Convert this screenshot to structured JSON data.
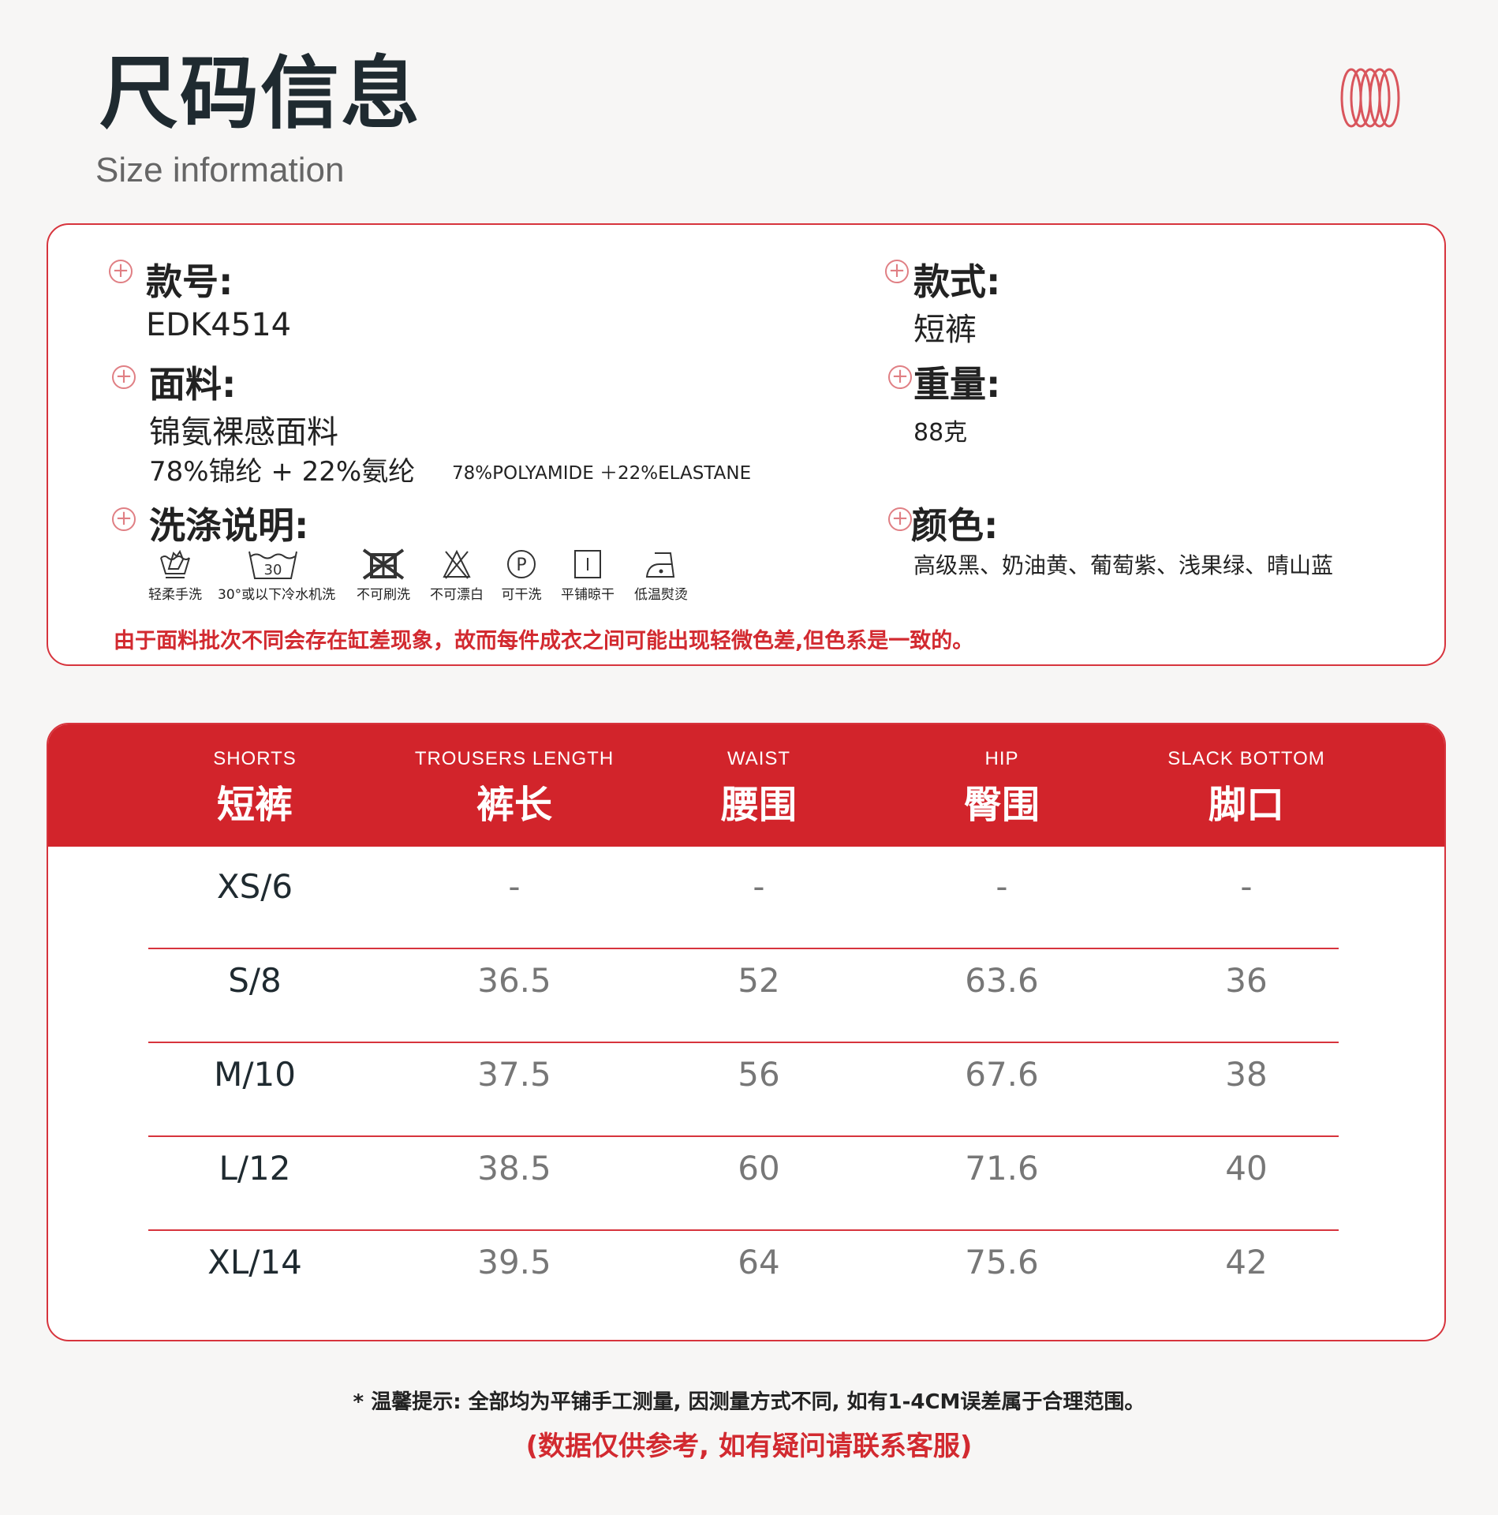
{
  "header": {
    "title": "尺码信息",
    "subtitle": "Size information"
  },
  "colors": {
    "accent": "#d2242b",
    "dark": "#1f2a30"
  },
  "info": {
    "style_no_label": "款号:",
    "style_no": "EDK4514",
    "fabric_label": "面料:",
    "fabric": "锦氨裸感面料",
    "composition_zh": "78%锦纶 + 22%氨纶",
    "composition_en": "78%POLYAMIDE ＋22%ELASTANE",
    "care_label": "洗涤说明:",
    "care_items": [
      {
        "icon": "hand-wash-icon",
        "label": "轻柔手洗"
      },
      {
        "icon": "machine-wash-30-icon",
        "label": "30°或以下冷水机洗",
        "temp": "30"
      },
      {
        "icon": "no-brush-icon",
        "label": "不可刷洗"
      },
      {
        "icon": "no-bleach-icon",
        "label": "不可漂白"
      },
      {
        "icon": "dry-clean-p-icon",
        "label": "可干洗",
        "letter": "P"
      },
      {
        "icon": "dry-flat-icon",
        "label": "平铺晾干"
      },
      {
        "icon": "iron-low-icon",
        "label": "低温熨烫"
      }
    ],
    "type_label": "款式:",
    "type": "短裤",
    "weight_label": "重量:",
    "weight": "88克",
    "color_label": "颜色:",
    "color_options": "高级黑、奶油黄、葡萄紫、浅果绿、晴山蓝",
    "note": "由于面料批次不同会存在缸差现象，故而每件成衣之间可能出现轻微色差,但色系是一致的。"
  },
  "table": {
    "columns": [
      {
        "en": "SHORTS",
        "zh": "短裤"
      },
      {
        "en": "TROUSERS LENGTH",
        "zh": "裤长"
      },
      {
        "en": "WAIST",
        "zh": "腰围"
      },
      {
        "en": "HIP",
        "zh": "臀围"
      },
      {
        "en": "SLACK BOTTOM",
        "zh": "脚口"
      }
    ],
    "rows": [
      [
        "XS/6",
        "-",
        "-",
        "-",
        "-"
      ],
      [
        "S/8",
        "36.5",
        "52",
        "63.6",
        "36"
      ],
      [
        "M/10",
        "37.5",
        "56",
        "67.6",
        "38"
      ],
      [
        "L/12",
        "38.5",
        "60",
        "71.6",
        "40"
      ],
      [
        "XL/14",
        "39.5",
        "64",
        "75.6",
        "42"
      ]
    ]
  },
  "footer": {
    "tip": "* 温馨提示: 全部均为平铺手工测量, 因测量方式不同, 如有1-4CM误差属于合理范围。",
    "contact": "(数据仅供参考, 如有疑问请联系客服)"
  }
}
